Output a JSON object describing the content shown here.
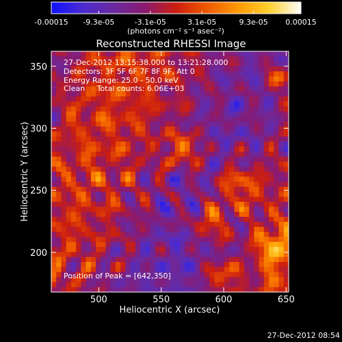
{
  "chart_data": {
    "type": "heatmap",
    "title": "Reconstructed RHESSI Image",
    "xlabel": "Heliocentric X (arcsec)",
    "ylabel": "Heliocentric Y (arcsec)",
    "xlim": [
      462,
      652
    ],
    "ylim": [
      168,
      362
    ],
    "xticks": [
      500,
      550,
      600,
      650
    ],
    "yticks": [
      200,
      250,
      300,
      350
    ],
    "colorbar": {
      "min": -0.00015,
      "max": 0.00015,
      "ticks": [
        -0.00015,
        -9.3e-05,
        -3.1e-05,
        3.1e-05,
        9.3e-05,
        0.00015
      ],
      "tick_labels": [
        "-0.00015",
        "-9.3e-05",
        "-3.1e-05",
        "3.1e-05",
        "9.3e-05",
        "0.00015"
      ],
      "label": "(photons cm⁻² s⁻¹ asec⁻²)",
      "colors": [
        "#1010ff",
        "#4a2bd0",
        "#6a2aa0",
        "#8a1a70",
        "#cc1e10",
        "#f05a00",
        "#ff9a00",
        "#ffd030",
        "#ffffff"
      ]
    },
    "annotations": {
      "time_range": "27-Dec-2012 13:15:38.000 to 13:21:28.000",
      "detectors": "Detectors: 3F 5F 6F 7F 8F 9F, Att 0",
      "energy_range": "Energy Range: 25.0 - 50.0 keV",
      "clean_counts": "Clean     Total counts: 6.06E+03",
      "peak_position": "Position of Peak = [642,350]"
    },
    "grid": false
  },
  "footer": {
    "timestamp": "27-Dec-2012 08:54"
  }
}
